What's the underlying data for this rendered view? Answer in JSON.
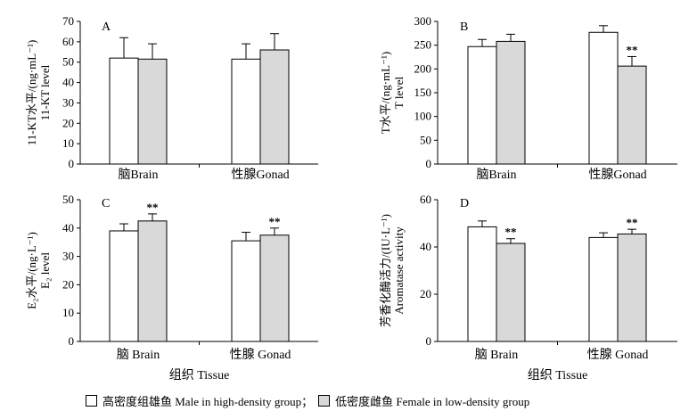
{
  "chart_data": [
    {
      "id": "A",
      "type": "bar",
      "panel_label": "A",
      "ylabel_cn": "11-KT水平/(ng·mL⁻¹)",
      "ylabel_en": "11-KT level",
      "xlabel": "",
      "categories": [
        "脑Brain",
        "性腺Gonad"
      ],
      "ylim": [
        0,
        70
      ],
      "yticks": [
        0,
        10,
        20,
        30,
        40,
        50,
        60,
        70
      ],
      "series": [
        {
          "name": "male",
          "values": [
            52,
            51.5
          ],
          "errors": [
            10,
            7.5
          ],
          "marks": [
            "",
            ""
          ]
        },
        {
          "name": "female",
          "values": [
            51.5,
            56
          ],
          "errors": [
            7.5,
            8
          ],
          "marks": [
            "",
            ""
          ]
        }
      ]
    },
    {
      "id": "B",
      "type": "bar",
      "panel_label": "B",
      "ylabel_cn": "T水平/(ng·mL⁻¹)",
      "ylabel_en": "T level",
      "xlabel": "",
      "categories": [
        "脑Brain",
        "性腺Gonad"
      ],
      "ylim": [
        0,
        300
      ],
      "yticks": [
        0,
        50,
        100,
        150,
        200,
        250,
        300
      ],
      "series": [
        {
          "name": "male",
          "values": [
            247,
            277
          ],
          "errors": [
            15,
            14
          ],
          "marks": [
            "",
            ""
          ]
        },
        {
          "name": "female",
          "values": [
            258,
            206
          ],
          "errors": [
            15,
            20
          ],
          "marks": [
            "",
            "**"
          ]
        }
      ]
    },
    {
      "id": "C",
      "type": "bar",
      "panel_label": "C",
      "ylabel_cn": "E₂水平/(ng·L⁻¹)",
      "ylabel_en": "E₂ level",
      "xlabel": "组织 Tissue",
      "categories": [
        "脑 Brain",
        "性腺 Gonad"
      ],
      "ylim": [
        0,
        50
      ],
      "yticks": [
        0,
        10,
        20,
        30,
        40,
        50
      ],
      "series": [
        {
          "name": "male",
          "values": [
            39,
            35.5
          ],
          "errors": [
            2.5,
            3
          ],
          "marks": [
            "",
            ""
          ]
        },
        {
          "name": "female",
          "values": [
            42.5,
            37.5
          ],
          "errors": [
            2.5,
            2.5
          ],
          "marks": [
            "**",
            "**"
          ]
        }
      ]
    },
    {
      "id": "D",
      "type": "bar",
      "panel_label": "D",
      "ylabel_cn": "芳香化酶活力/(IU·L⁻¹)",
      "ylabel_en": "Aromatase activity",
      "xlabel": "组织 Tissue",
      "categories": [
        "脑 Brain",
        "性腺 Gonad"
      ],
      "ylim": [
        0,
        60
      ],
      "yticks": [
        0,
        20,
        40,
        60
      ],
      "series": [
        {
          "name": "male",
          "values": [
            48.5,
            44
          ],
          "errors": [
            2.5,
            2
          ],
          "marks": [
            "",
            ""
          ]
        },
        {
          "name": "female",
          "values": [
            41.5,
            45.5
          ],
          "errors": [
            2,
            2
          ],
          "marks": [
            "**",
            "**"
          ]
        }
      ]
    }
  ],
  "legend": {
    "male_label": "高密度组雄鱼 Male in high-density group",
    "separator": "；",
    "female_label": "低密度雌鱼 Female in low-density group"
  },
  "colors": {
    "male_fill": "#ffffff",
    "female_fill": "#d9d9d9",
    "stroke": "#000000"
  }
}
